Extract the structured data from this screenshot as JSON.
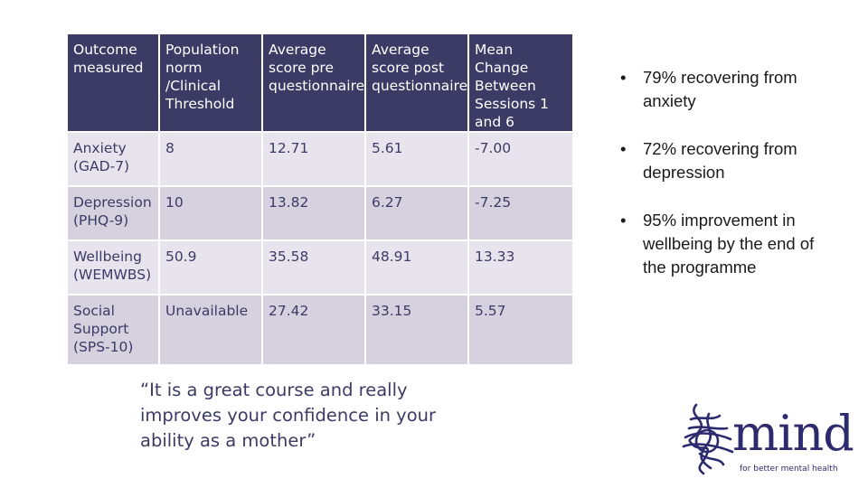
{
  "table": {
    "headers": [
      "Outcome\nmeasured",
      "Population\nnorm /Clinical\nThreshold",
      "Average\nscore pre\nquestionnaire",
      "Average\nscore post\nquestionnaire",
      "Mean Change\nBetween\nSessions 1\nand 6"
    ],
    "rows": [
      [
        "Anxiety\n(GAD-7)",
        "8",
        "12.71",
        "5.61",
        "-7.00"
      ],
      [
        "Depression\n(PHQ-9)",
        "10",
        "13.82",
        "6.27",
        "-7.25"
      ],
      [
        "Wellbeing\n(WEMWBS)",
        "50.9",
        "35.58",
        "48.91",
        "13.33"
      ],
      [
        "Social\nSupport\n(SPS-10)",
        "Unavailable",
        "27.42",
        "33.15",
        "5.57"
      ]
    ]
  },
  "bullets": {
    "marker": "•",
    "items": [
      "79% recovering from anxiety",
      "72% recovering from depression",
      "95% improvement in wellbeing by the end of the programme"
    ]
  },
  "quote": "“It is a great course and really\nimproves your confidence in your\nability as a mother”",
  "logo": {
    "wordmark": "mind",
    "tagline": "for better mental health",
    "icon": "mind-scribble-logo-icon",
    "color": "#2d2a6e"
  },
  "colors": {
    "header_bg": "#3b3b66",
    "row_light": "#e8e4ee",
    "row_dark": "#d5d1de",
    "text_dark": "#3b3b66"
  }
}
